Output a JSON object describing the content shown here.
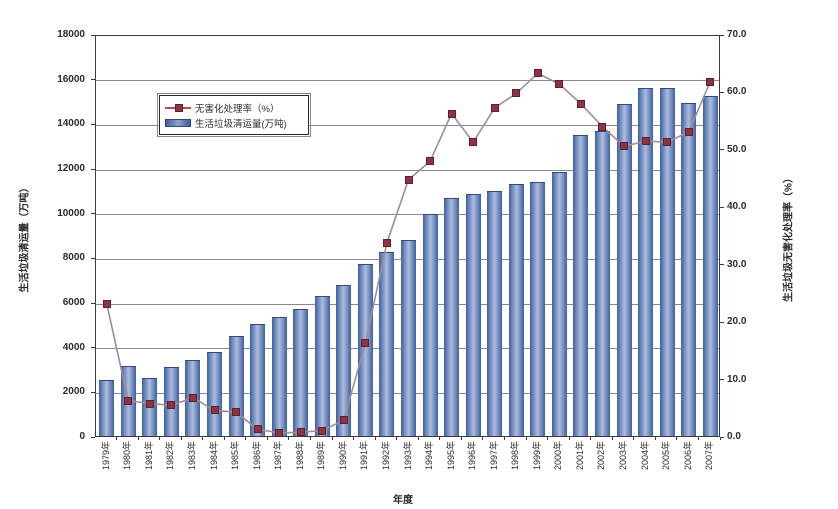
{
  "chart_data": {
    "type": "combo-bar-line",
    "categories": [
      "1979年",
      "1980年",
      "1981年",
      "1982年",
      "1983年",
      "1984年",
      "1985年",
      "1986年",
      "1987年",
      "1988年",
      "1989年",
      "1990年",
      "1991年",
      "1992年",
      "1993年",
      "1994年",
      "1995年",
      "1996年",
      "1997年",
      "1998年",
      "1999年",
      "2000年",
      "2001年",
      "2002年",
      "2003年",
      "2004年",
      "2005年",
      "2006年",
      "2007年"
    ],
    "series": [
      {
        "name": "生活垃圾清运量(万吨)",
        "type": "bar",
        "axis": "left",
        "color": "#4a6aa8",
        "values": [
          2500,
          3130,
          2600,
          3080,
          3400,
          3770,
          4480,
          5000,
          5350,
          5700,
          6290,
          6780,
          7700,
          8260,
          8790,
          9950,
          10670,
          10820,
          10970,
          11300,
          11390,
          11820,
          13470,
          13650,
          14860,
          15570,
          15580,
          14900,
          15210
        ]
      },
      {
        "name": "无害化处理率（%）",
        "type": "line",
        "axis": "right",
        "line_color": "#9b8f96",
        "marker_color": "#8d3442",
        "values": [
          23.3,
          6.5,
          6.0,
          5.7,
          7.0,
          4.8,
          4.5,
          1.5,
          0.9,
          1.0,
          1.3,
          3.1,
          16.5,
          34.0,
          45.0,
          48.2,
          56.5,
          51.5,
          57.5,
          60.0,
          63.5,
          61.6,
          58.2,
          54.2,
          50.8,
          51.7,
          51.5,
          53.3,
          62.0
        ]
      }
    ],
    "left_axis": {
      "title": "生活垃圾清运量（万吨）",
      "min": 0,
      "max": 18000,
      "step": 2000,
      "tick_labels": [
        "18000",
        "16000",
        "14000",
        "12000",
        "10000",
        "8000",
        "6000",
        "4000",
        "2000",
        "0"
      ]
    },
    "right_axis": {
      "title": "生活垃圾无害化处理率（%）",
      "min": 0,
      "max": 70,
      "step": 10,
      "tick_labels": [
        "70.0",
        "60.0",
        "50.0",
        "40.0",
        "30.0",
        "20.0",
        "10.0",
        "0.0"
      ]
    },
    "x_axis": {
      "title": "年度"
    },
    "grid": true,
    "legend_position": "inside-upper-left"
  },
  "legend": {
    "line_label": "无害化处理率（%）",
    "bar_label": "生活垃圾清运量(万吨)"
  }
}
